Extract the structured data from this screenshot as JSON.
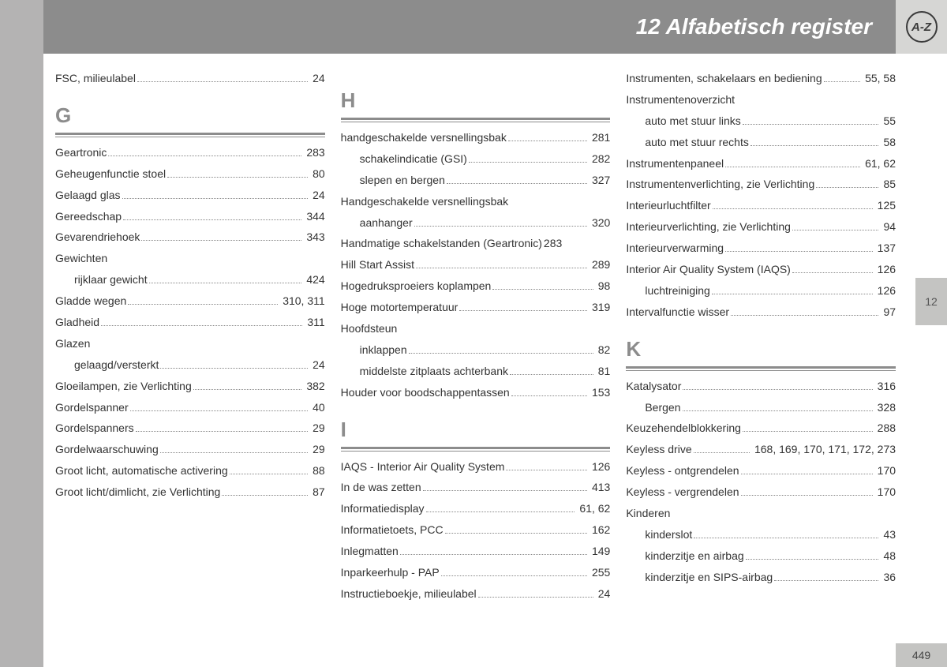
{
  "header": {
    "title": "12 Alfabetisch register",
    "icon_label": "A-Z",
    "tab": "12",
    "page_number": "449"
  },
  "columns": [
    {
      "blocks": [
        {
          "letter": null,
          "entries": [
            {
              "t": "FSC, milieulabel",
              "p": "24"
            }
          ]
        },
        {
          "letter": "G",
          "entries": [
            {
              "t": "Geartronic",
              "p": "283"
            },
            {
              "t": "Geheugenfunctie stoel",
              "p": "80"
            },
            {
              "t": "Gelaagd glas",
              "p": "24"
            },
            {
              "t": "Gereedschap",
              "p": "344"
            },
            {
              "t": "Gevarendriehoek",
              "p": "343"
            },
            {
              "t": "Gewichten",
              "noval": true
            },
            {
              "t": "rijklaar gewicht",
              "p": "424",
              "sub": true
            },
            {
              "t": "Gladde wegen",
              "p": "310, 311"
            },
            {
              "t": "Gladheid",
              "p": "311"
            },
            {
              "t": "Glazen",
              "noval": true
            },
            {
              "t": "gelaagd/versterkt",
              "p": "24",
              "sub": true
            },
            {
              "t": "Gloeilampen, zie Verlichting",
              "p": "382"
            },
            {
              "t": "Gordelspanner",
              "p": "40"
            },
            {
              "t": "Gordelspanners",
              "p": "29"
            },
            {
              "t": "Gordelwaarschuwing",
              "p": "29"
            },
            {
              "t": "Groot licht, automatische activering",
              "p": "88"
            },
            {
              "t": "Groot licht/dimlicht, zie Verlichting",
              "p": "87"
            }
          ]
        }
      ]
    },
    {
      "blocks": [
        {
          "letter": "H",
          "entries": [
            {
              "t": "handgeschakelde versnellingsbak",
              "p": "281"
            },
            {
              "t": "schakelindicatie (GSI)",
              "p": "282",
              "sub": true
            },
            {
              "t": "slepen en bergen",
              "p": "327",
              "sub": true
            },
            {
              "t": "Handgeschakelde versnellingsbak",
              "noval": true
            },
            {
              "t": "aanhanger",
              "p": "320",
              "sub": true
            },
            {
              "t": "Handmatige schakelstanden (Geartronic)",
              "p": "283",
              "nogap": true
            },
            {
              "t": "Hill Start Assist",
              "p": "289"
            },
            {
              "t": "Hogedruksproeiers koplampen",
              "p": "98"
            },
            {
              "t": "Hoge motortemperatuur",
              "p": "319"
            },
            {
              "t": "Hoofdsteun",
              "noval": true
            },
            {
              "t": "inklappen",
              "p": "82",
              "sub": true
            },
            {
              "t": "middelste zitplaats achterbank",
              "p": "81",
              "sub": true
            },
            {
              "t": "Houder voor boodschappentassen",
              "p": "153"
            }
          ]
        },
        {
          "letter": "I",
          "entries": [
            {
              "t": "IAQS - Interior Air Quality System",
              "p": "126"
            },
            {
              "t": "In de was zetten",
              "p": "413"
            },
            {
              "t": "Informatiedisplay",
              "p": "61, 62"
            },
            {
              "t": "Informatietoets, PCC",
              "p": "162"
            },
            {
              "t": "Inlegmatten",
              "p": "149"
            },
            {
              "t": "Inparkeerhulp - PAP",
              "p": "255"
            },
            {
              "t": "Instructieboekje, milieulabel",
              "p": "24"
            }
          ]
        }
      ]
    },
    {
      "blocks": [
        {
          "letter": null,
          "entries": [
            {
              "t": "Instrumenten, schakelaars en bediening",
              "p": "55, 58"
            },
            {
              "t": "Instrumentenoverzicht",
              "noval": true
            },
            {
              "t": "auto met stuur links",
              "p": "55",
              "sub": true
            },
            {
              "t": "auto met stuur rechts",
              "p": "58",
              "sub": true
            },
            {
              "t": "Instrumentenpaneel",
              "p": "61, 62"
            },
            {
              "t": "Instrumentenverlichting, zie Verlichting",
              "p": "85"
            },
            {
              "t": "Interieurluchtfilter",
              "p": "125"
            },
            {
              "t": "Interieurverlichting, zie Verlichting",
              "p": "94"
            },
            {
              "t": "Interieurverwarming",
              "p": "137"
            },
            {
              "t": "Interior Air Quality System (IAQS)",
              "p": "126"
            },
            {
              "t": "luchtreiniging",
              "p": "126",
              "sub": true
            },
            {
              "t": "Intervalfunctie wisser",
              "p": "97"
            }
          ]
        },
        {
          "letter": "K",
          "entries": [
            {
              "t": "Katalysator",
              "p": "316"
            },
            {
              "t": "Bergen",
              "p": "328",
              "sub": true
            },
            {
              "t": "Keuzehendelblokkering",
              "p": "288"
            },
            {
              "t": "Keyless drive",
              "p": "168, 169, 170, 171, 172, 273"
            },
            {
              "t": "Keyless - ontgrendelen",
              "p": "170"
            },
            {
              "t": "Keyless - vergrendelen",
              "p": "170"
            },
            {
              "t": "Kinderen",
              "noval": true
            },
            {
              "t": "kinderslot",
              "p": "43",
              "sub": true
            },
            {
              "t": "kinderzitje en airbag",
              "p": "48",
              "sub": true
            },
            {
              "t": "kinderzitje en SIPS-airbag",
              "p": "36",
              "sub": true
            }
          ]
        }
      ]
    }
  ]
}
